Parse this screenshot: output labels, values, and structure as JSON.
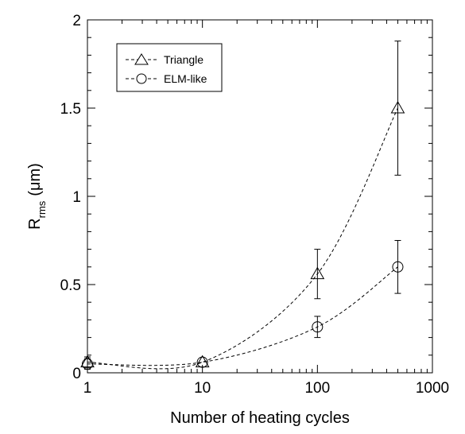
{
  "chart_data": {
    "type": "scatter",
    "xlabel": "Number of heating cycles",
    "ylabel": "R",
    "ylabel_sub": "rms",
    "ylabel_unit": "(μm)",
    "xscale": "log",
    "xlim": [
      1,
      1000
    ],
    "ylim": [
      0,
      2
    ],
    "grid": false,
    "legend_position": "top-left",
    "x_ticks": [
      1,
      10,
      100,
      1000
    ],
    "x_tick_labels": [
      "1",
      "10",
      "100",
      "1000"
    ],
    "y_ticks": [
      0,
      0.5,
      1,
      1.5,
      2
    ],
    "y_tick_labels": [
      "0",
      "0.5",
      "1",
      "1.5",
      "2"
    ],
    "series": [
      {
        "name": "Triangle",
        "marker": "triangle",
        "x": [
          1,
          10,
          100,
          500
        ],
        "y": [
          0.06,
          0.06,
          0.56,
          1.5
        ],
        "err": [
          0.03,
          0.0,
          0.14,
          0.38
        ]
      },
      {
        "name": "ELM-like",
        "marker": "circle",
        "x": [
          1,
          10,
          100,
          500
        ],
        "y": [
          0.05,
          0.06,
          0.26,
          0.6
        ],
        "err": [
          0.03,
          0.0,
          0.06,
          0.15
        ]
      }
    ]
  }
}
